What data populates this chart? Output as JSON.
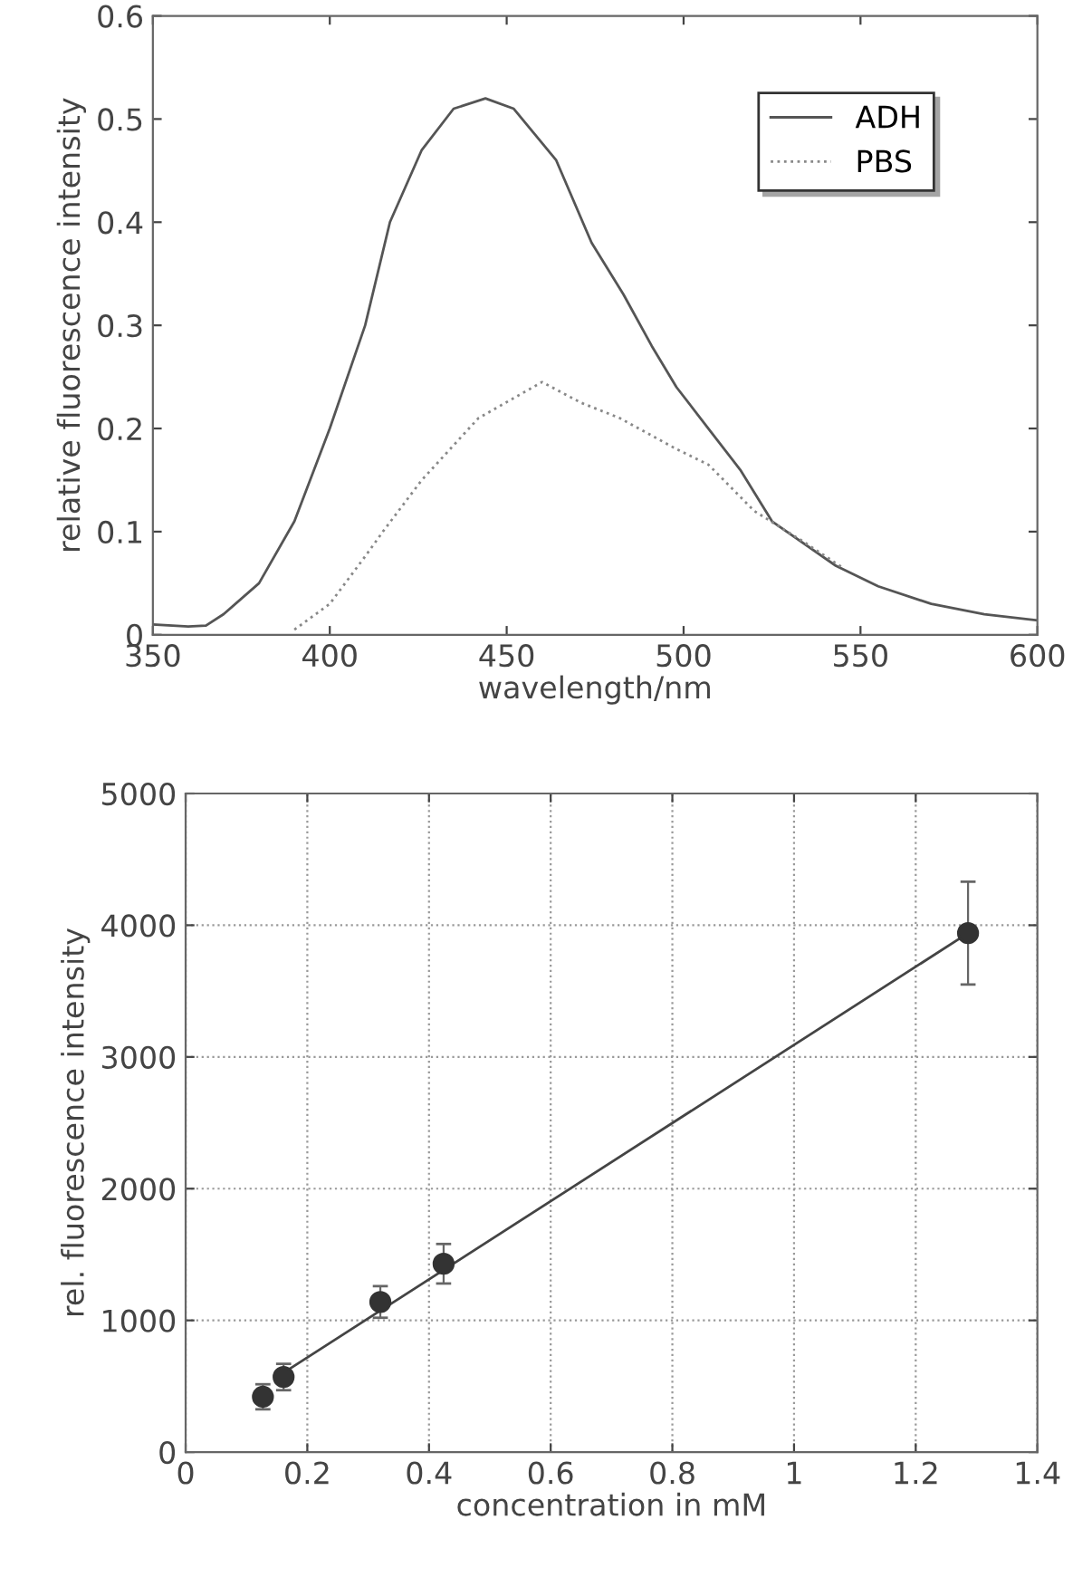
{
  "chart_data": [
    {
      "type": "line",
      "xlabel": "wavelength/nm",
      "ylabel": "relative fluorescence intensity",
      "xlim": [
        350,
        600
      ],
      "ylim": [
        0,
        0.6
      ],
      "xticks": [
        350,
        400,
        450,
        500,
        550,
        600
      ],
      "yticks": [
        0,
        0.1,
        0.2,
        0.3,
        0.4,
        0.5,
        0.6
      ],
      "legend": "top right",
      "grid": false,
      "series": [
        {
          "name": "ADH",
          "color": "#555555",
          "line_style": "solid",
          "x": [
            350,
            360,
            365,
            370,
            380,
            390,
            400,
            410,
            417,
            426,
            435,
            444,
            452,
            464,
            474,
            483,
            491,
            498,
            507,
            516,
            525,
            543,
            555,
            570,
            585,
            600
          ],
          "values": [
            0.01,
            0.008,
            0.009,
            0.02,
            0.05,
            0.11,
            0.2,
            0.3,
            0.4,
            0.47,
            0.51,
            0.52,
            0.51,
            0.46,
            0.38,
            0.33,
            0.28,
            0.24,
            0.2,
            0.16,
            0.11,
            0.067,
            0.047,
            0.03,
            0.02,
            0.014
          ]
        },
        {
          "name": "PBS",
          "color": "#888888",
          "line_style": "dotted",
          "x": [
            390,
            400,
            410,
            415,
            426,
            442,
            460,
            471,
            482,
            498,
            507,
            520,
            534,
            545
          ],
          "values": [
            0.005,
            0.03,
            0.076,
            0.1,
            0.15,
            0.21,
            0.245,
            0.225,
            0.21,
            0.18,
            0.165,
            0.12,
            0.09,
            0.065
          ]
        }
      ]
    },
    {
      "type": "scatter",
      "xlabel": "concentration in mM",
      "ylabel": "rel. fluorescence intensity",
      "xlim": [
        0,
        1.4
      ],
      "ylim": [
        0,
        5000
      ],
      "xticks": [
        0,
        0.2,
        0.4,
        0.6,
        0.8,
        1,
        1.2,
        1.4
      ],
      "yticks": [
        0,
        1000,
        2000,
        3000,
        4000,
        5000
      ],
      "grid": true,
      "series": [
        {
          "color": "#333333",
          "marker": "circle",
          "x": [
            0.127,
            0.161,
            0.32,
            0.424,
            1.286
          ],
          "values": [
            420,
            570,
            1140,
            1430,
            3940
          ],
          "errors": [
            95,
            100,
            120,
            150,
            390
          ]
        },
        {
          "type": "line",
          "color": "#444444",
          "line_style": "solid",
          "x": [
            0.16,
            1.286
          ],
          "values": [
            600,
            3940
          ]
        }
      ]
    }
  ]
}
